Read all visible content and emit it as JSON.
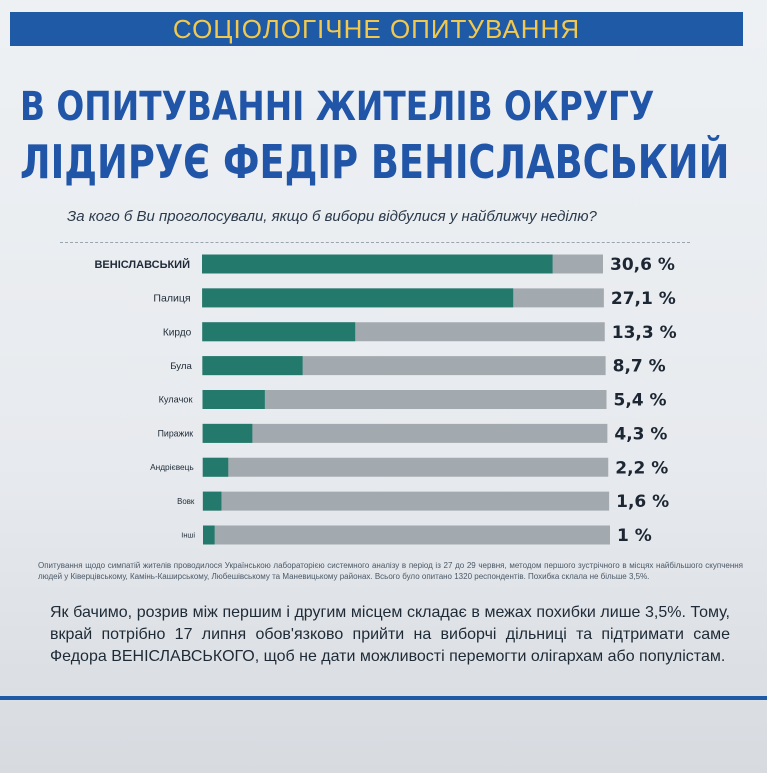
{
  "header": {
    "section": "СОЦІОЛОГІЧНЕ ОПИТУВАННЯ",
    "headline_line1": "В ОПИТУВАННІ ЖИТЕЛІВ ОКРУГУ",
    "headline_line2": "ЛІДИРУЄ ФЕДІР ВЕНІСЛАВСЬКИЙ"
  },
  "chart_data": {
    "type": "bar",
    "orientation": "horizontal",
    "title": "За кого б Ви проголосували, якщо б вибори відбулися у найближчу неділю?",
    "categories": [
      "ВЕНІСЛАВСЬКИЙ",
      "Палиця",
      "Кирдо",
      "Була",
      "Кулачок",
      "Пиражик",
      "Андрієвець",
      "Вовк",
      "Інші"
    ],
    "values": [
      30.6,
      27.1,
      13.3,
      8.7,
      5.4,
      4.3,
      2.2,
      1.6,
      1
    ],
    "value_labels": [
      "30,6 %",
      "27,1 %",
      "13,3 %",
      "8,7 %",
      "5,4 %",
      "4,3 %",
      "2,2 %",
      "1,6 %",
      "1 %"
    ],
    "xlim": [
      0,
      35
    ],
    "grid": false,
    "colors": {
      "bar": "#237a6c",
      "track": "#a3aaaf"
    }
  },
  "footnote": "Опитування щодо симпатій жителів проводилося Українською лабораторією системного аналізу в період із 27 до 29 червня, методом першого зустрічного в місцях найбільшого скупчення людей у Ківерцівському, Камінь-Каширському, Любешівському та Маневицькому районах. Всього було опитано 1320 респондентів. Похибка склала не більше 3,5%.",
  "body": "Як бачимо, розрив між першим і другим місцем складає в межах похибки лише 3,5%. Тому, вкрай потрібно 17 липня обов'язково прийти на виборчі дільниці та підтримати саме Федора ВЕНІСЛАВСЬКОГО, щоб не дати можливості перемогти олігархам або популістам."
}
